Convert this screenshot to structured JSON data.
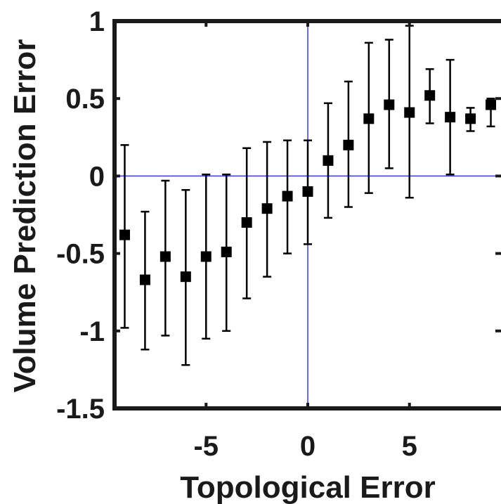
{
  "chart_data": {
    "type": "scatter",
    "title": "",
    "xlabel": "Topological Error",
    "ylabel": "Volume Prediction Error",
    "xlim": [
      -9.5,
      9.5
    ],
    "ylim": [
      -1.5,
      1
    ],
    "xticks": [
      -5,
      0,
      5
    ],
    "yticks": [
      -1.5,
      -1,
      -0.5,
      0,
      0.5,
      1
    ],
    "xtick_labels": [
      "-5",
      "0",
      "5"
    ],
    "ytick_labels": [
      "-1.5",
      "-1",
      "-0.5",
      "0",
      "0.5",
      "1"
    ],
    "reference_lines": {
      "x": 0,
      "y": 0,
      "color": "#3b3bd0"
    },
    "marker": "square",
    "marker_color": "#000000",
    "grid": false,
    "series": [
      {
        "x": [
          -9,
          -8,
          -7,
          -6,
          -5,
          -4,
          -3,
          -2,
          -1,
          0,
          1,
          2,
          3,
          4,
          5,
          6,
          7,
          8,
          9
        ],
        "y": [
          -0.38,
          -0.67,
          -0.52,
          -0.65,
          -0.52,
          -0.49,
          -0.3,
          -0.21,
          -0.13,
          -0.1,
          0.1,
          0.2,
          0.37,
          0.46,
          0.41,
          0.52,
          0.38,
          0.37,
          0.46
        ],
        "err_low": [
          -0.98,
          -1.12,
          -1.03,
          -1.22,
          -1.05,
          -1.0,
          -0.79,
          -0.65,
          -0.5,
          -0.44,
          -0.27,
          -0.2,
          -0.11,
          0.05,
          -0.14,
          0.34,
          0.01,
          0.29,
          0.32
        ],
        "err_high": [
          0.2,
          -0.23,
          -0.03,
          -0.09,
          0.01,
          0.01,
          0.18,
          0.22,
          0.23,
          0.23,
          0.47,
          0.61,
          0.86,
          0.88,
          0.97,
          0.69,
          0.75,
          0.44,
          0.5
        ]
      }
    ]
  }
}
